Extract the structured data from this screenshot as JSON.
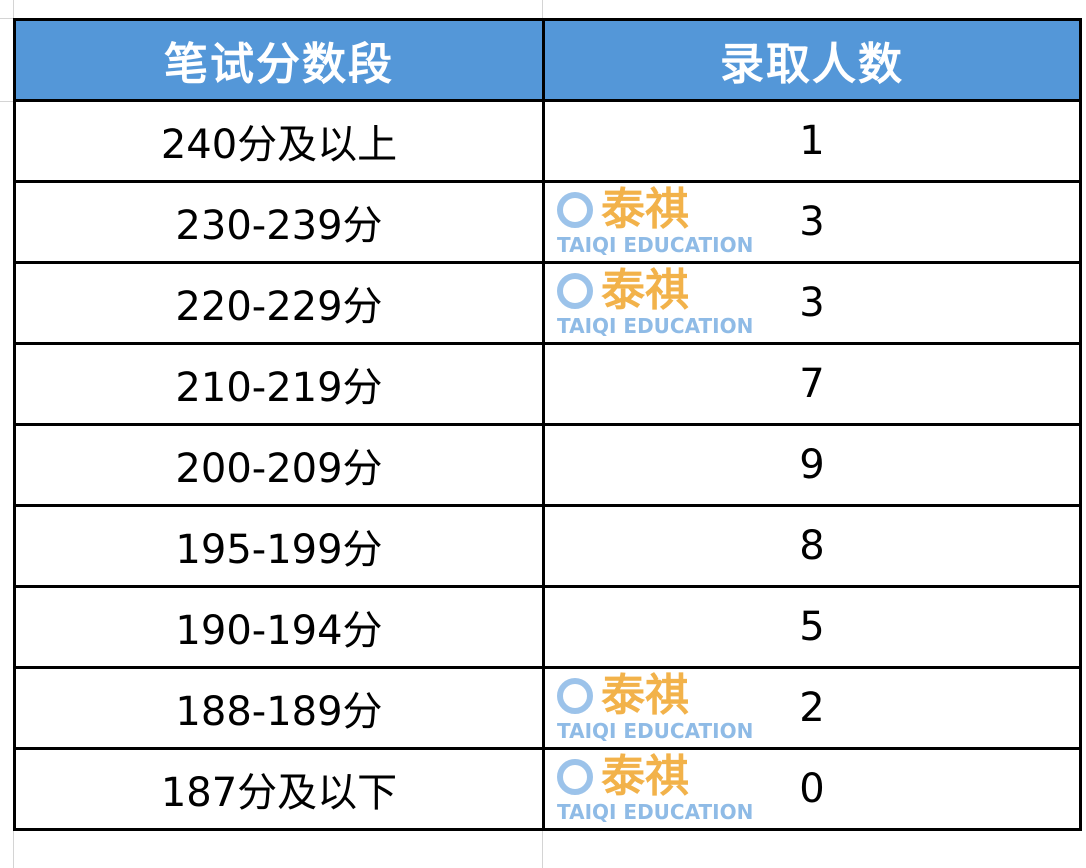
{
  "table": {
    "headers": [
      "笔试分数段",
      "录取人数"
    ],
    "header_color": "#5497d8",
    "rows": [
      {
        "range": "240分及以上",
        "count": "1"
      },
      {
        "range": "230-239分",
        "count": "3"
      },
      {
        "range": "220-229分",
        "count": "3"
      },
      {
        "range": "210-219分",
        "count": "7"
      },
      {
        "range": "200-209分",
        "count": "9"
      },
      {
        "range": "195-199分",
        "count": "8"
      },
      {
        "range": "190-194分",
        "count": "5"
      },
      {
        "range": "188-189分",
        "count": "2"
      },
      {
        "range": "187分及以下",
        "count": "0"
      }
    ]
  },
  "watermark": {
    "cn": "泰祺",
    "en": "TAIQI EDUCATION"
  }
}
